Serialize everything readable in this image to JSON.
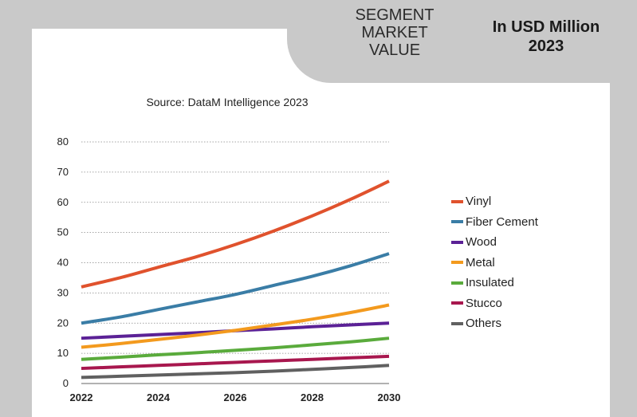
{
  "header": {
    "segment_title": "SEGMENT\nMARKET\nVALUE",
    "unit_title_line1": "In USD Million",
    "unit_title_line2": "2023"
  },
  "chart_data": {
    "type": "line",
    "subtitle": "Source: DataM Intelligence 2023",
    "x": [
      2022,
      2023,
      2024,
      2025,
      2026,
      2027,
      2028,
      2029,
      2030
    ],
    "xticks": [
      2022,
      2024,
      2026,
      2028,
      2030
    ],
    "yticks": [
      0,
      10,
      20,
      30,
      40,
      50,
      60,
      70,
      80
    ],
    "ylim": [
      0,
      80
    ],
    "xlim": [
      2022,
      2030
    ],
    "grid": "horizontal-dotted",
    "legend_position": "right",
    "series": [
      {
        "name": "Vinyl",
        "color": "#e0522d",
        "values": [
          32,
          35,
          38.5,
          42,
          46,
          50.5,
          55.5,
          61,
          67
        ]
      },
      {
        "name": "Fiber Cement",
        "color": "#3a7da6",
        "values": [
          20,
          22,
          24.5,
          27,
          29.5,
          32.5,
          35.5,
          39,
          43
        ]
      },
      {
        "name": "Wood",
        "color": "#5b2196",
        "values": [
          15,
          15.6,
          16.2,
          16.8,
          17.5,
          18.1,
          18.8,
          19.4,
          20
        ]
      },
      {
        "name": "Metal",
        "color": "#f39a1e",
        "values": [
          12,
          13.2,
          14.6,
          16,
          17.6,
          19.4,
          21.3,
          23.5,
          26
        ]
      },
      {
        "name": "Insulated",
        "color": "#5aab3c",
        "values": [
          8,
          8.7,
          9.5,
          10.2,
          11,
          11.8,
          12.8,
          13.8,
          15
        ]
      },
      {
        "name": "Stucco",
        "color": "#a8174e",
        "values": [
          5,
          5.5,
          6,
          6.5,
          7,
          7.5,
          8,
          8.5,
          9
        ]
      },
      {
        "name": "Others",
        "color": "#606060",
        "values": [
          2,
          2.4,
          2.8,
          3.2,
          3.6,
          4.1,
          4.7,
          5.3,
          6
        ]
      }
    ]
  }
}
